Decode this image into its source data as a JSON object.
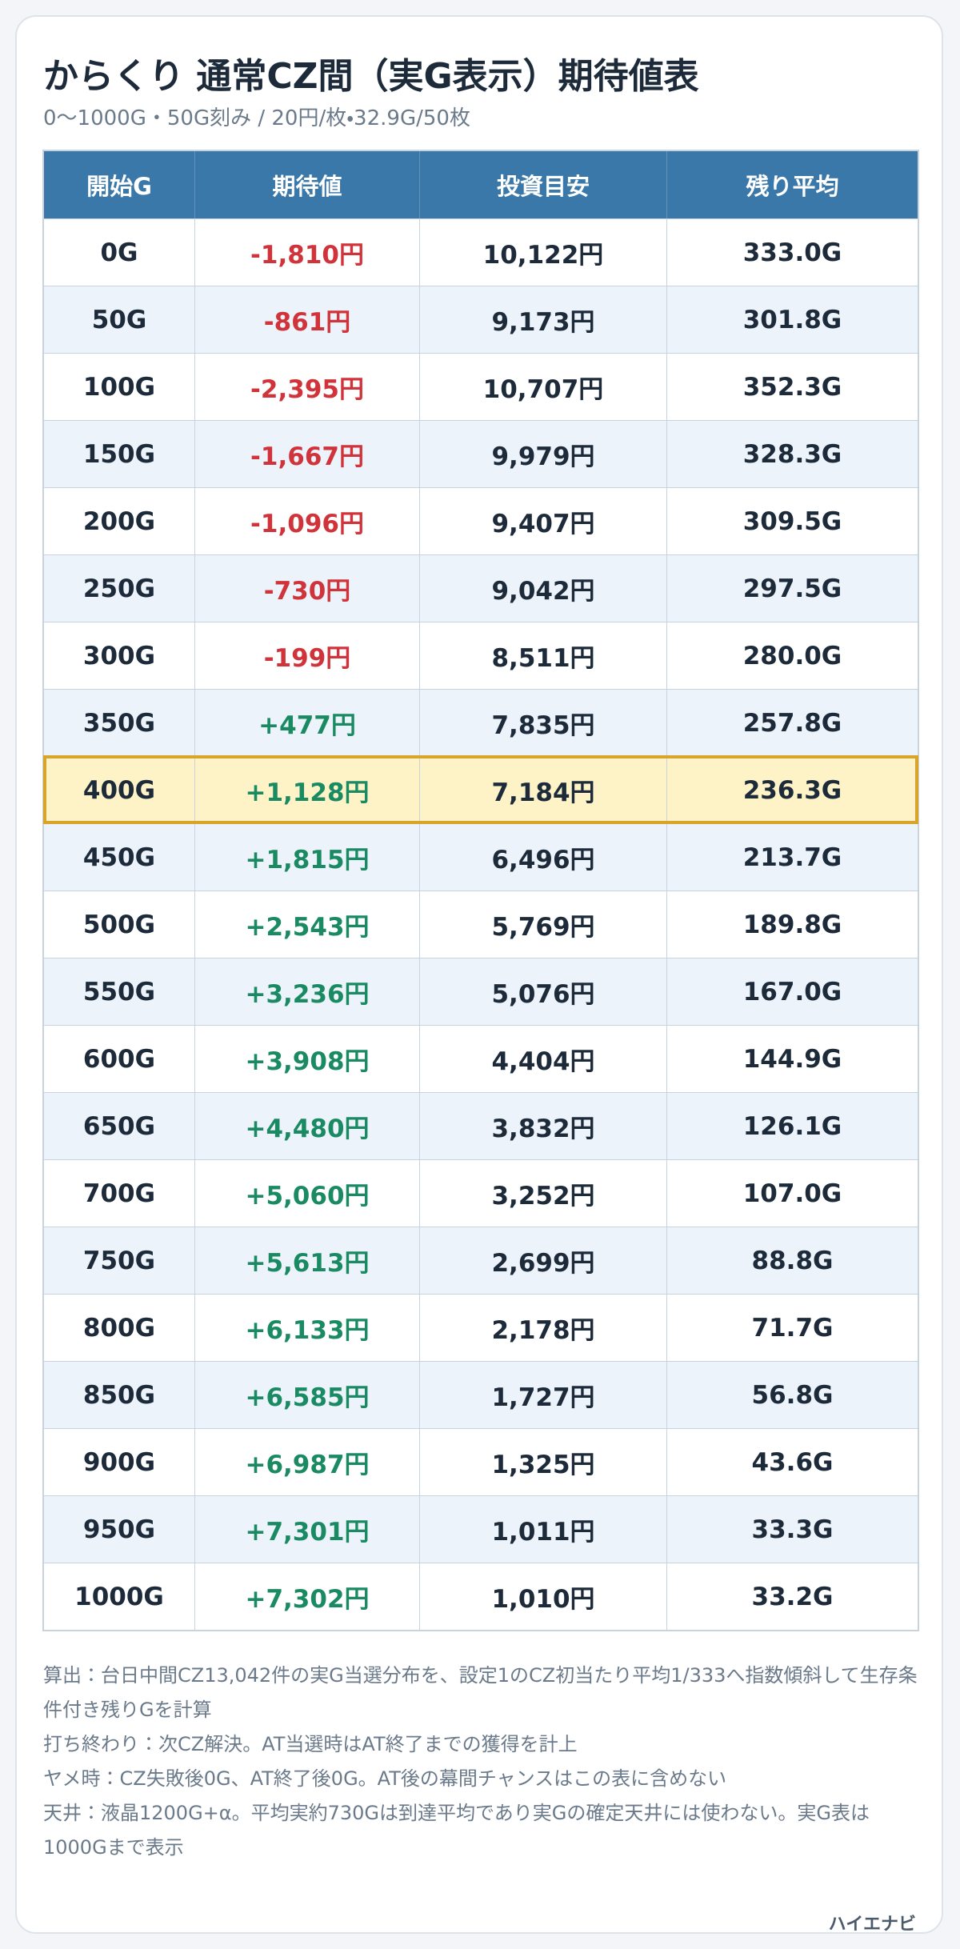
{
  "header": {
    "title": "からくり 通常CZ間（実G表示）期待値表",
    "subtitle": "0〜1000G・50G刻み / 20円/枚・32.9G/50枚"
  },
  "table": {
    "columns": [
      "開始G",
      "期待値",
      "投資目安",
      "残り平均"
    ],
    "rows": [
      [
        "0G",
        "-1,810円",
        "10,122円",
        "333.0G"
      ],
      [
        "50G",
        "-861円",
        "9,173円",
        "301.8G"
      ],
      [
        "100G",
        "-2,395円",
        "10,707円",
        "352.3G"
      ],
      [
        "150G",
        "-1,667円",
        "9,979円",
        "328.3G"
      ],
      [
        "200G",
        "-1,096円",
        "9,407円",
        "309.5G"
      ],
      [
        "250G",
        "-730円",
        "9,042円",
        "297.5G"
      ],
      [
        "300G",
        "-199円",
        "8,511円",
        "280.0G"
      ],
      [
        "350G",
        "+477円",
        "7,835円",
        "257.8G"
      ],
      [
        "400G",
        "+1,128円",
        "7,184円",
        "236.3G"
      ],
      [
        "450G",
        "+1,815円",
        "6,496円",
        "213.7G"
      ],
      [
        "500G",
        "+2,543円",
        "5,769円",
        "189.8G"
      ],
      [
        "550G",
        "+3,236円",
        "5,076円",
        "167.0G"
      ],
      [
        "600G",
        "+3,908円",
        "4,404円",
        "144.9G"
      ],
      [
        "650G",
        "+4,480円",
        "3,832円",
        "126.1G"
      ],
      [
        "700G",
        "+5,060円",
        "3,252円",
        "107.0G"
      ],
      [
        "750G",
        "+5,613円",
        "2,699円",
        "88.8G"
      ],
      [
        "800G",
        "+6,133円",
        "2,178円",
        "71.7G"
      ],
      [
        "850G",
        "+6,585円",
        "1,727円",
        "56.8G"
      ],
      [
        "900G",
        "+6,987円",
        "1,325円",
        "43.6G"
      ],
      [
        "950G",
        "+7,301円",
        "1,011円",
        "33.3G"
      ],
      [
        "1000G",
        "+7,302円",
        "1,010円",
        "33.2G"
      ]
    ]
  },
  "notes": [
    "算出：台日中間CZ13,042件の実G当選分布を、設定1のCZ初当たり平均1/333へ指数傾斜して生存条件付き残りGを計算",
    "打ち終わり：次CZ解決。AT当選時はAT終了までの獲得を計上",
    "ヤメ時：CZ失敗後0G、AT終了後0G。AT後の幕間チャンスはこの表に含めない",
    "天井：液晶1200G+α。平均実約730Gは到達平均であり実Gの確定天井には使わない。実G表は1000Gまで表示"
  ],
  "footer": {
    "brand": "ハイエナビ"
  }
}
